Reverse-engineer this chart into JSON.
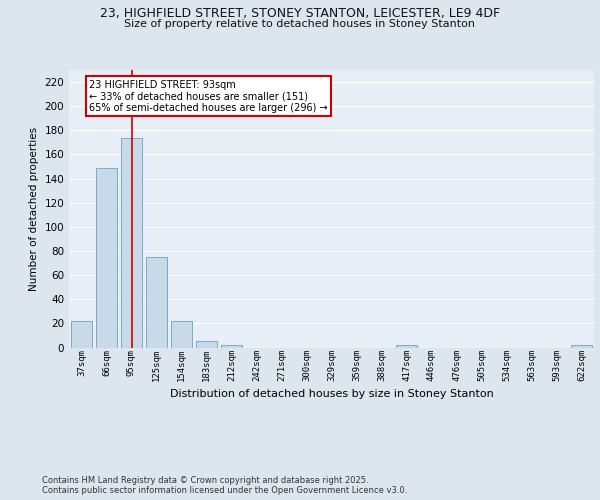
{
  "title_line1": "23, HIGHFIELD STREET, STONEY STANTON, LEICESTER, LE9 4DF",
  "title_line2": "Size of property relative to detached houses in Stoney Stanton",
  "xlabel": "Distribution of detached houses by size in Stoney Stanton",
  "ylabel": "Number of detached properties",
  "categories": [
    "37sqm",
    "66sqm",
    "95sqm",
    "125sqm",
    "154sqm",
    "183sqm",
    "212sqm",
    "242sqm",
    "271sqm",
    "300sqm",
    "329sqm",
    "359sqm",
    "388sqm",
    "417sqm",
    "446sqm",
    "476sqm",
    "505sqm",
    "534sqm",
    "563sqm",
    "593sqm",
    "622sqm"
  ],
  "values": [
    22,
    149,
    174,
    75,
    22,
    5,
    2,
    0,
    0,
    0,
    0,
    0,
    0,
    2,
    0,
    0,
    0,
    0,
    0,
    0,
    2
  ],
  "bar_color": "#c8d9e8",
  "bar_edge_color": "#7baac8",
  "vline_x": 2,
  "vline_color": "#cc0000",
  "annotation_title": "23 HIGHFIELD STREET: 93sqm",
  "annotation_line1": "← 33% of detached houses are smaller (151)",
  "annotation_line2": "65% of semi-detached houses are larger (296) →",
  "annotation_box_color": "#cc0000",
  "footnote1": "Contains HM Land Registry data © Crown copyright and database right 2025.",
  "footnote2": "Contains public sector information licensed under the Open Government Licence v3.0.",
  "bg_color": "#dde6ef",
  "plot_bg_color": "#e8eef5",
  "grid_color": "#ffffff",
  "ylim": [
    0,
    230
  ],
  "yticks": [
    0,
    20,
    40,
    60,
    80,
    100,
    120,
    140,
    160,
    180,
    200,
    220
  ]
}
